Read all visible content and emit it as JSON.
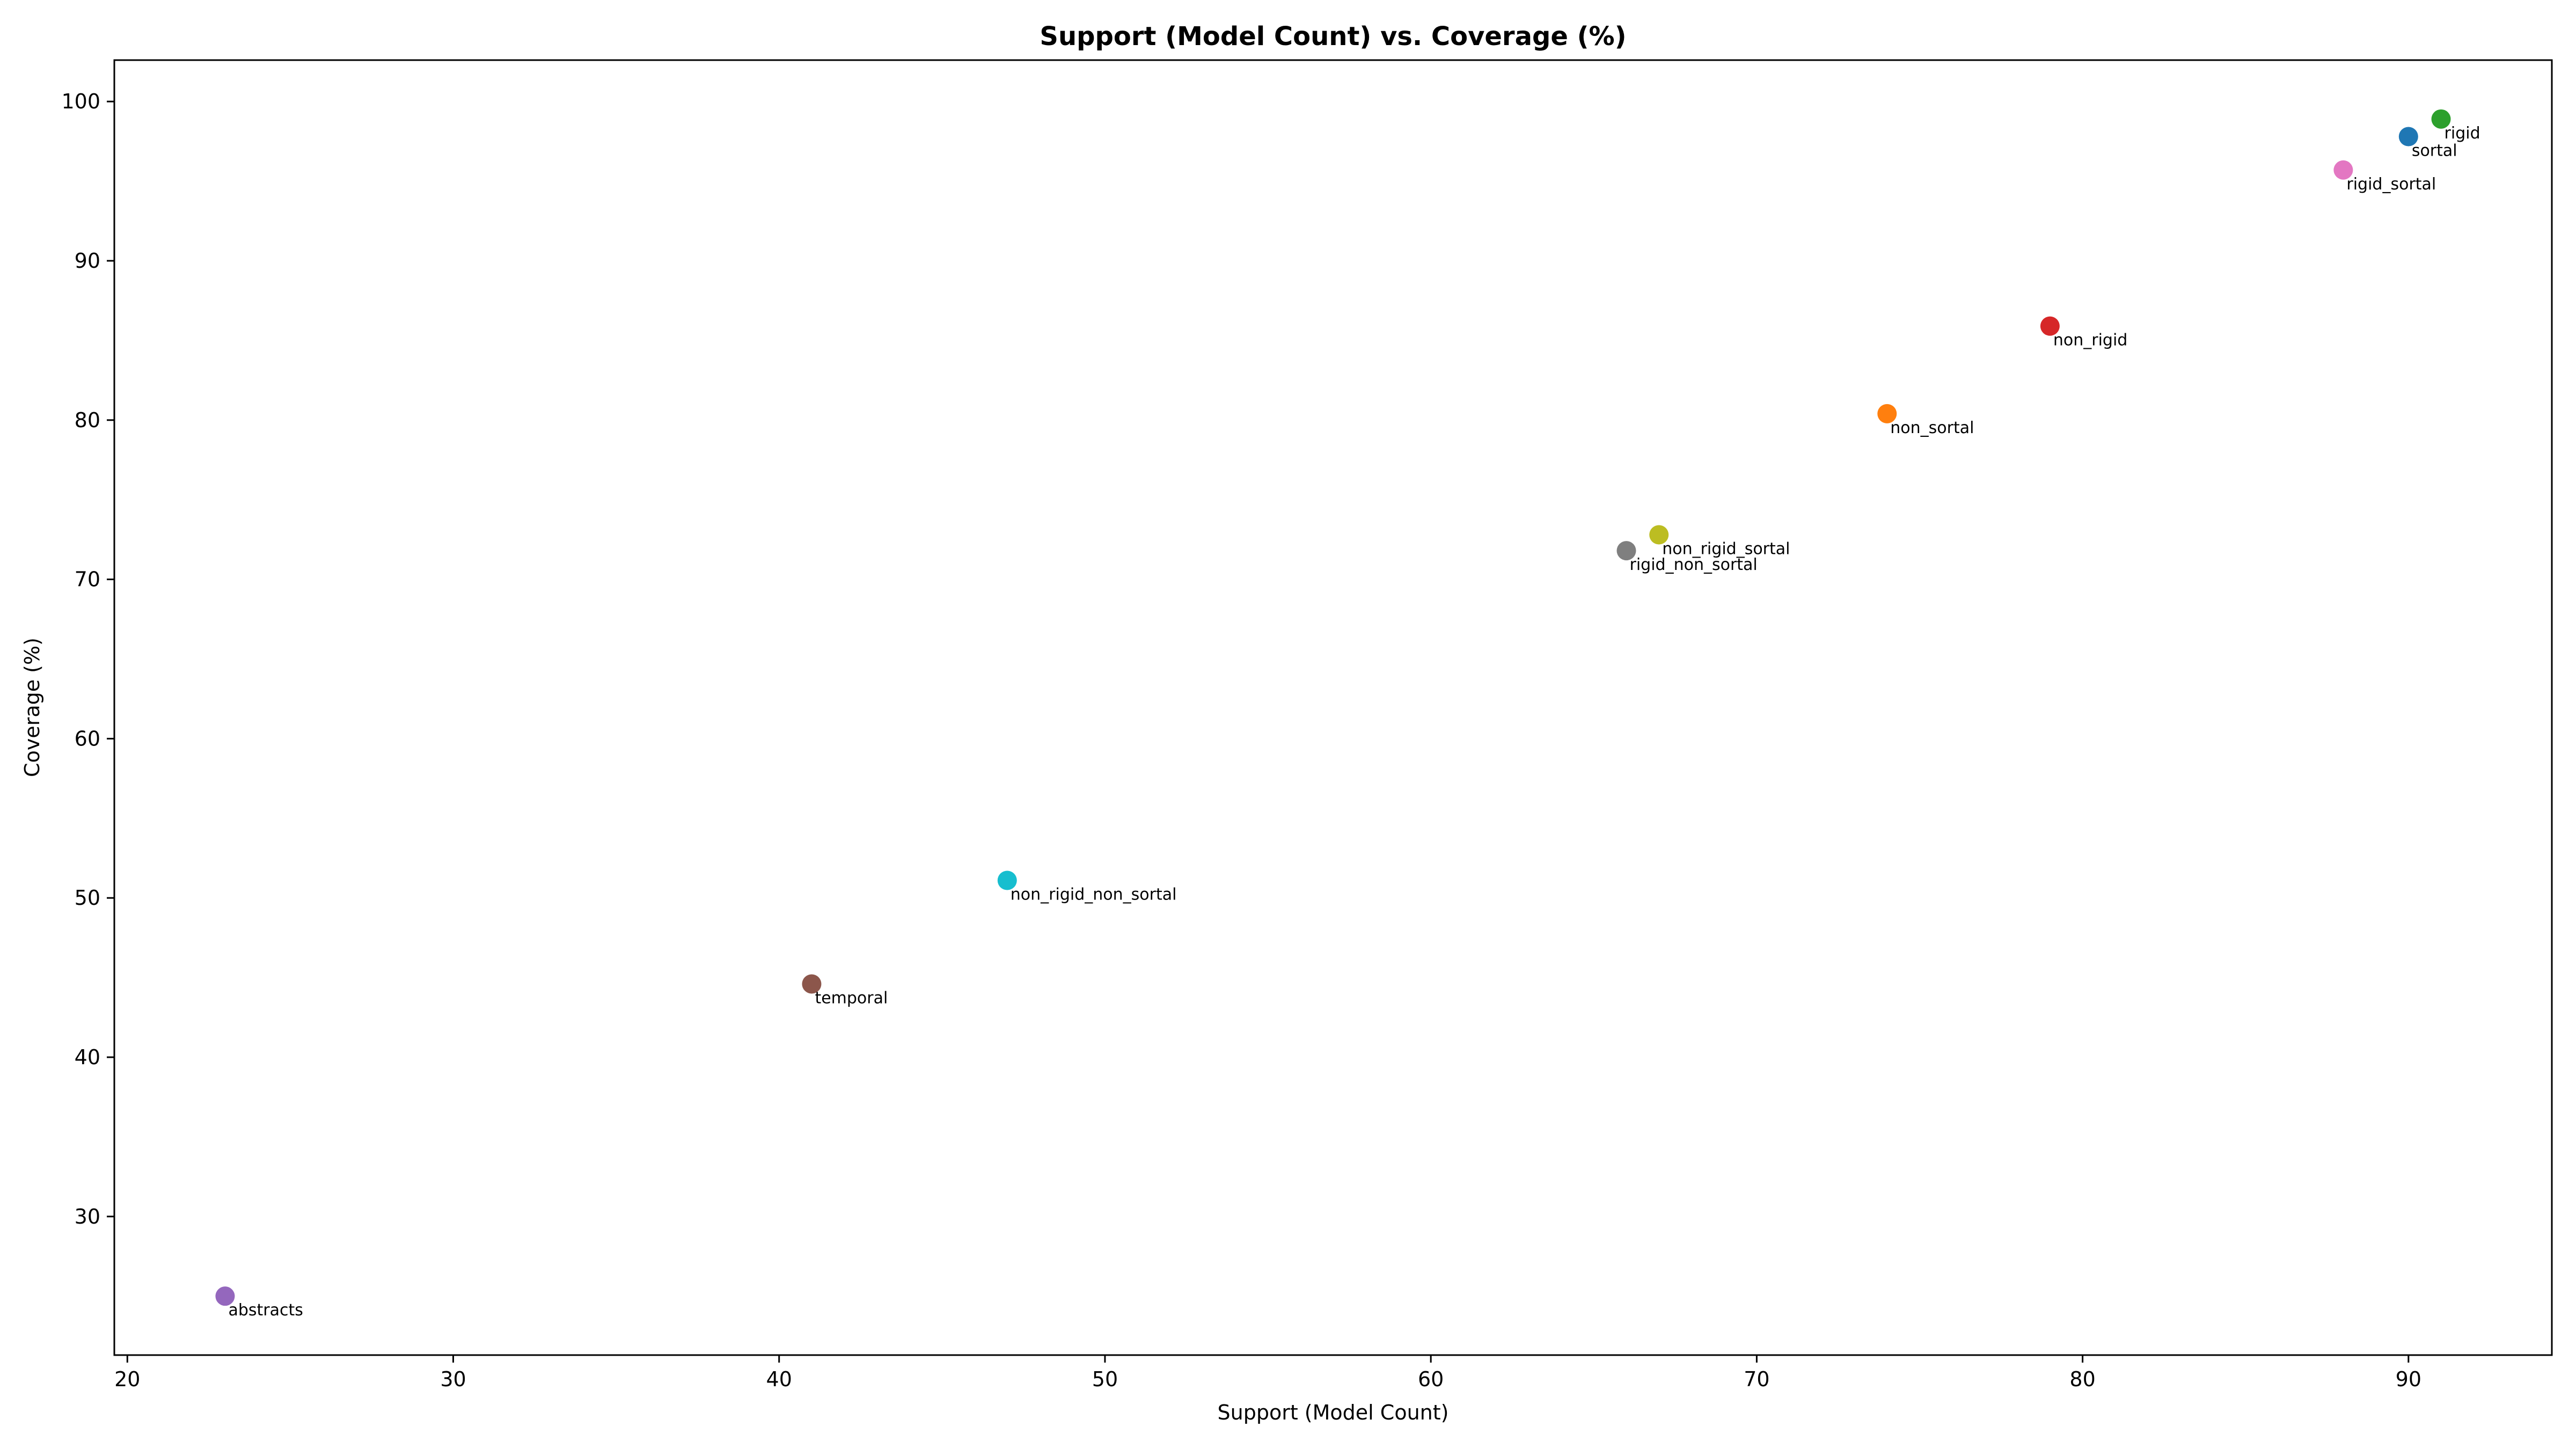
{
  "chart_data": {
    "type": "scatter",
    "title": "Support (Model Count) vs. Coverage (%)",
    "xlabel": "Support (Model Count)",
    "ylabel": "Coverage (%)",
    "xlim": [
      19.6,
      94.4
    ],
    "ylim": [
      21.3,
      102.6
    ],
    "xticks": [
      20,
      30,
      40,
      50,
      60,
      70,
      80,
      90
    ],
    "yticks": [
      30,
      40,
      50,
      60,
      70,
      80,
      90,
      100
    ],
    "grid": false,
    "points": [
      {
        "label": "sortal",
        "x": 90,
        "y": 97.8,
        "color": "#1f77b4"
      },
      {
        "label": "non_sortal",
        "x": 74,
        "y": 80.4,
        "color": "#ff7f0e"
      },
      {
        "label": "rigid",
        "x": 91,
        "y": 98.9,
        "color": "#2ca02c"
      },
      {
        "label": "non_rigid",
        "x": 79,
        "y": 85.9,
        "color": "#d62728"
      },
      {
        "label": "abstracts",
        "x": 23,
        "y": 25.0,
        "color": "#9467bd"
      },
      {
        "label": "temporal",
        "x": 41,
        "y": 44.6,
        "color": "#8c564b"
      },
      {
        "label": "rigid_sortal",
        "x": 88,
        "y": 95.7,
        "color": "#e377c2"
      },
      {
        "label": "rigid_non_sortal",
        "x": 66,
        "y": 71.8,
        "color": "#7f7f7f"
      },
      {
        "label": "non_rigid_sortal",
        "x": 67,
        "y": 72.8,
        "color": "#bcbd22"
      },
      {
        "label": "non_rigid_non_sortal",
        "x": 47,
        "y": 51.1,
        "color": "#17becf"
      }
    ]
  }
}
